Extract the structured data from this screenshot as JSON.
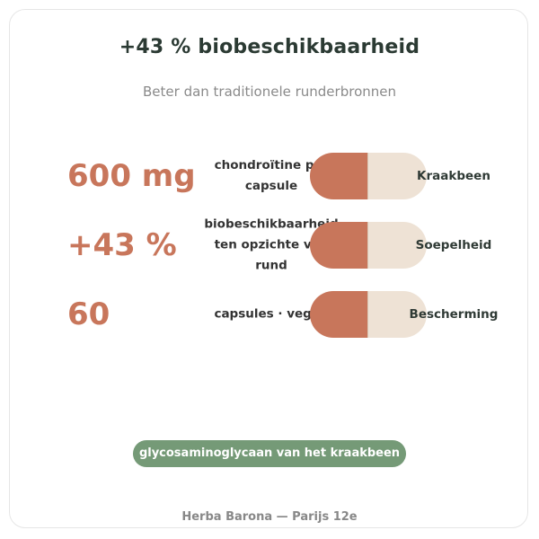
{
  "header": {
    "title": "+43 % biobeschikbaarheid",
    "subtitle": "Beter dan traditionele runderbronnen"
  },
  "stats": [
    {
      "value": "600 mg",
      "description": "chondroïtine per capsule",
      "capsule_label": "Kraakbeen"
    },
    {
      "value": "+43 %",
      "description": "biobeschikbaarheid ten opzichte van rund",
      "capsule_label": "Soepelheid"
    },
    {
      "value": "60",
      "description": "capsules · vegan",
      "capsule_label": "Bescherming"
    }
  ],
  "badge": {
    "label": "glycosaminoglycaan van het kraakbeen"
  },
  "footer": {
    "text": "Herba Barona — Parijs 12e"
  },
  "colors": {
    "accent": "#c8765b",
    "capsule_light": "#eee2d5",
    "badge": "#759a77",
    "title": "#2b3a33"
  }
}
